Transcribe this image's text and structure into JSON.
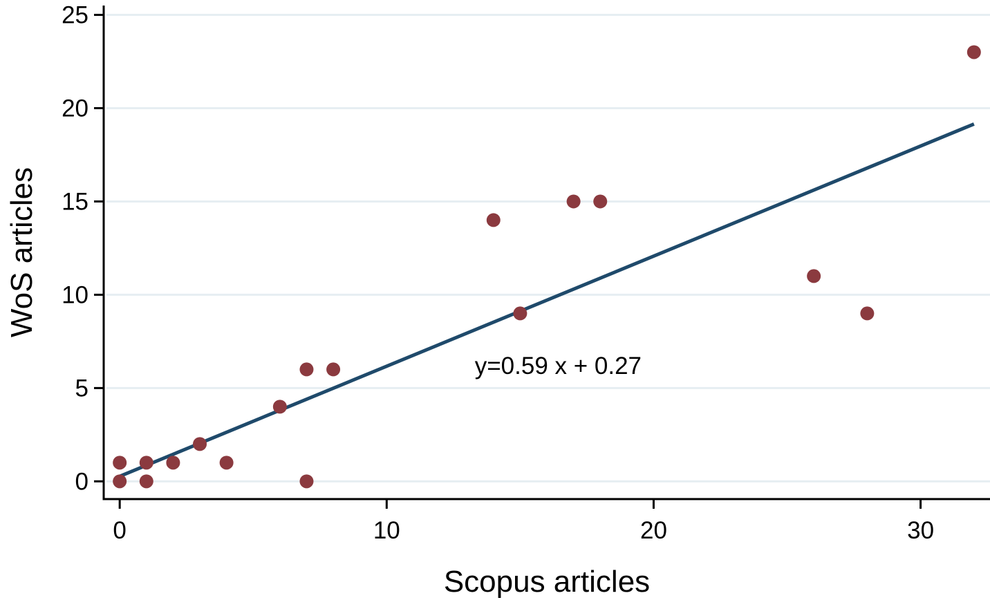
{
  "chart_data": {
    "type": "scatter",
    "xlabel": "Scopus articles",
    "ylabel": "WoS articles",
    "xlim": [
      -0.6,
      32.6
    ],
    "ylim": [
      -0.95,
      25.5
    ],
    "x_ticks": [
      0,
      10,
      20,
      30
    ],
    "y_ticks": [
      0,
      5,
      10,
      15,
      20,
      25
    ],
    "grid": "horizontal",
    "points": [
      {
        "x": 0,
        "y": 1
      },
      {
        "x": 0,
        "y": 0
      },
      {
        "x": 1,
        "y": 1
      },
      {
        "x": 1,
        "y": 0
      },
      {
        "x": 2,
        "y": 1
      },
      {
        "x": 3,
        "y": 2
      },
      {
        "x": 4,
        "y": 1
      },
      {
        "x": 6,
        "y": 4
      },
      {
        "x": 7,
        "y": 6
      },
      {
        "x": 7,
        "y": 0
      },
      {
        "x": 8,
        "y": 6
      },
      {
        "x": 14,
        "y": 14
      },
      {
        "x": 15,
        "y": 9
      },
      {
        "x": 17,
        "y": 15
      },
      {
        "x": 18,
        "y": 15
      },
      {
        "x": 26,
        "y": 11
      },
      {
        "x": 28,
        "y": 9
      },
      {
        "x": 32,
        "y": 23
      }
    ],
    "fit_line": {
      "slope": 0.59,
      "intercept": 0.27,
      "x_range": [
        0,
        32
      ]
    },
    "annotation": {
      "text": "y=0.59 x + 0.27",
      "x": 13.3,
      "y": 6.2
    },
    "colors": {
      "points": "#8b3a3f",
      "line": "#1f4a6b",
      "grid": "#e6eef2",
      "axis": "#000000"
    }
  }
}
